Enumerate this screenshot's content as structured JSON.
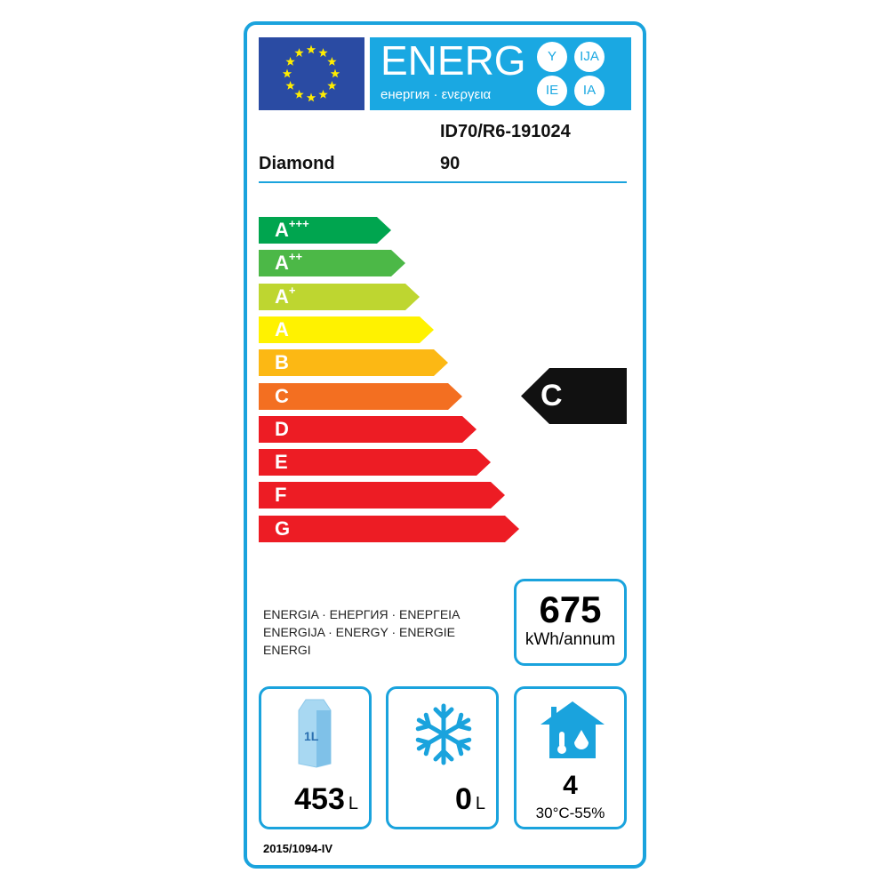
{
  "header": {
    "title": "ENERG",
    "subtitle": "енергия · ενεργεια",
    "suffixes": [
      "Y",
      "IJA",
      "IE",
      "IA"
    ]
  },
  "supplier": "Diamond",
  "model_id": "ID70/R6-191024",
  "model_number": "90",
  "scale": {
    "classes": [
      {
        "label": "A",
        "sup": "+++",
        "color": "#00a54f"
      },
      {
        "label": "A",
        "sup": "++",
        "color": "#4cb847"
      },
      {
        "label": "A",
        "sup": "+",
        "color": "#bed630"
      },
      {
        "label": "A",
        "sup": "",
        "color": "#fff200"
      },
      {
        "label": "B",
        "sup": "",
        "color": "#fcb814"
      },
      {
        "label": "C",
        "sup": "",
        "color": "#f36f21"
      },
      {
        "label": "D",
        "sup": "",
        "color": "#ed1c24"
      },
      {
        "label": "E",
        "sup": "",
        "color": "#ed1c24"
      },
      {
        "label": "F",
        "sup": "",
        "color": "#ed1c24"
      },
      {
        "label": "G",
        "sup": "",
        "color": "#ed1c24"
      }
    ],
    "rating": "C"
  },
  "energy_words": [
    "ENERGIA · ЕНЕРГИЯ · ΕΝΕΡΓΕΙΑ",
    "ENERGIJA · ENERGY · ENERGIE",
    "ENERGI"
  ],
  "consumption": {
    "value": "675",
    "unit": "kWh/annum"
  },
  "fresh": {
    "icon": "milk-carton-icon",
    "carton_label": "1L",
    "value": "453",
    "unit": "L"
  },
  "frozen": {
    "icon": "snowflake-icon",
    "value": "0",
    "unit": "L"
  },
  "climate": {
    "icon": "house-climate-icon",
    "value": "4",
    "conditions": "30°C-55%"
  },
  "regulation": "2015/1094-IV",
  "colors": {
    "accent": "#1aa3dd",
    "flag": "#2a4ba3",
    "rating_pointer": "#111111"
  }
}
